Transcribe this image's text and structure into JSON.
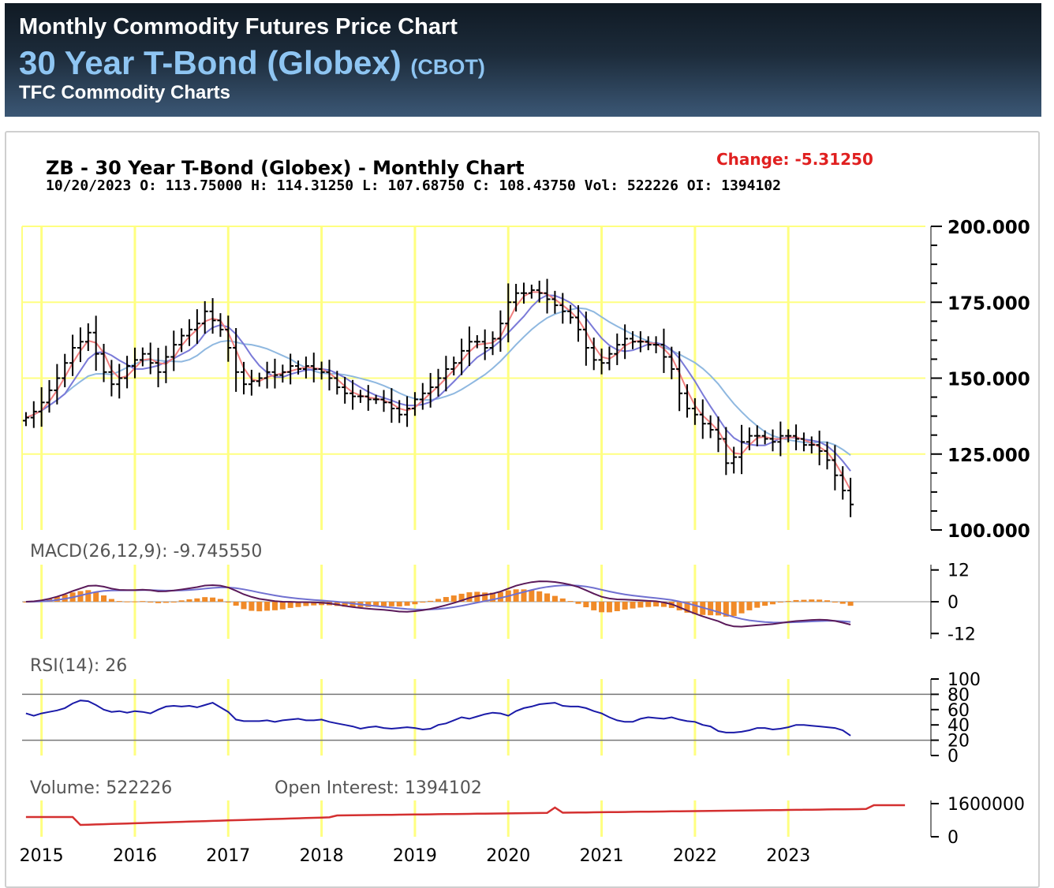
{
  "header": {
    "line1": "Monthly Commodity Futures Price Chart",
    "line2_main": "30 Year T-Bond (Globex)",
    "line2_exchange": "(CBOT)",
    "line3": "TFC Commodity Charts",
    "colors": {
      "title_blue": "#8ec5f2",
      "white": "#ffffff"
    }
  },
  "chart_data": {
    "type": "ohlc",
    "title": "ZB - 30 Year T-Bond (Globex) - Monthly Chart",
    "change_label": "Change: -5.31250",
    "quote_line": "10/20/2023 O: 113.75000 H: 114.31250 L: 107.68750 C: 108.43750 Vol: 522226 OI: 1394102",
    "x_ticks": [
      "2015",
      "2016",
      "2017",
      "2018",
      "2019",
      "2020",
      "2021",
      "2022",
      "2023"
    ],
    "x_tick_month_index": [
      2,
      14,
      26,
      38,
      50,
      62,
      74,
      86,
      98
    ],
    "months": 114,
    "price": {
      "yticks": [
        "200.000",
        "175.000",
        "150.000",
        "125.000",
        "100.000"
      ],
      "ylim": [
        100,
        200
      ],
      "close": [
        137,
        139,
        142,
        146,
        150,
        155,
        160,
        162,
        165,
        158,
        152,
        148,
        150,
        154,
        156,
        158,
        155,
        152,
        157,
        161,
        164,
        166,
        168,
        172,
        169,
        166,
        160,
        152,
        148,
        149,
        150,
        152,
        151,
        152,
        154,
        153,
        154,
        153,
        152,
        150,
        147,
        145,
        144,
        144,
        143,
        143,
        142,
        140,
        138,
        140,
        143,
        145,
        147,
        150,
        153,
        155,
        159,
        162,
        162,
        160,
        163,
        168,
        175,
        178,
        178,
        179,
        178,
        176,
        174,
        172,
        170,
        166,
        160,
        156,
        155,
        158,
        161,
        163,
        162,
        162,
        161,
        161,
        157,
        153,
        145,
        140,
        138,
        135,
        133,
        130,
        122,
        124,
        129,
        131,
        131,
        130,
        129,
        131,
        131,
        130,
        128,
        128,
        126,
        123,
        118,
        113,
        108.4
      ]
    },
    "macd": {
      "label": "MACD(26,12,9): -9.745550",
      "yticks": [
        "12",
        "0",
        "-12"
      ],
      "ylim": [
        -14,
        14
      ]
    },
    "rsi": {
      "label": "RSI(14): 26",
      "yticks": [
        "100",
        "80",
        "60",
        "40",
        "20",
        "0"
      ],
      "ylim": [
        0,
        100
      ],
      "values": [
        55,
        52,
        55,
        57,
        59,
        62,
        68,
        72,
        71,
        66,
        60,
        57,
        58,
        56,
        58,
        57,
        55,
        60,
        64,
        65,
        64,
        65,
        63,
        66,
        69,
        63,
        57,
        47,
        45,
        45,
        45,
        46,
        44,
        46,
        47,
        48,
        46,
        46,
        47,
        44,
        42,
        40,
        38,
        35,
        37,
        38,
        36,
        35,
        36,
        37,
        36,
        34,
        35,
        40,
        42,
        46,
        50,
        48,
        51,
        54,
        56,
        55,
        52,
        58,
        62,
        64,
        67,
        68,
        69,
        65,
        64,
        64,
        62,
        58,
        55,
        50,
        46,
        44,
        44,
        48,
        50,
        49,
        48,
        50,
        47,
        45,
        44,
        40,
        38,
        32,
        30,
        30,
        31,
        33,
        36,
        36,
        34,
        35,
        37,
        40,
        40,
        39,
        38,
        37,
        36,
        33,
        26
      ]
    },
    "volume": {
      "label": "Volume: 522226",
      "oi_label": "Open Interest: 1394102",
      "yticks": [
        "1600000",
        "0"
      ],
      "colors": {
        "volume": "#000000",
        "open_interest": "#d43030"
      }
    },
    "colors": {
      "bars": "#000000",
      "ma_fast": "#f08080",
      "ma_mid": "#7a7ad8",
      "ma_slow": "#8fb8e0",
      "macd_line": "#5a1a5a",
      "signal_line": "#7070d0",
      "histogram": "#f08a28",
      "rsi_line": "#1a1aa8",
      "grid": "#ffff80",
      "change": "#e02020"
    }
  }
}
